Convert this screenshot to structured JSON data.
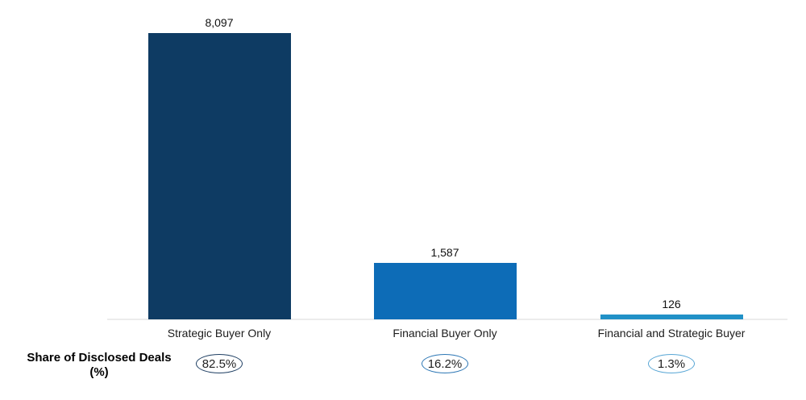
{
  "chart_data": {
    "type": "bar",
    "title": "",
    "categories": [
      "Strategic Buyer Only",
      "Financial Buyer Only",
      "Financial and Strategic Buyer"
    ],
    "values": [
      8097,
      1587,
      126
    ],
    "value_labels": [
      "8,097",
      "1,587",
      "126"
    ],
    "bar_colors": [
      "#0e3b63",
      "#0d6cb7",
      "#2191c7"
    ],
    "share_row": {
      "label_line1": "Share of Disclosed Deals",
      "label_line2": "(%)",
      "values_pct": [
        82.5,
        16.2,
        1.3
      ],
      "labels": [
        "82.5%",
        "16.2%",
        "1.3%"
      ],
      "pill_border_colors": [
        "#1f3f63",
        "#2d77b5",
        "#58a6d5"
      ]
    },
    "axis": {
      "ylim": [
        0,
        8097
      ],
      "grid": false,
      "legend": false,
      "baseline_color": "#ececec"
    }
  },
  "colors": {
    "background": "#ffffff",
    "text": "#1a1a1a"
  }
}
